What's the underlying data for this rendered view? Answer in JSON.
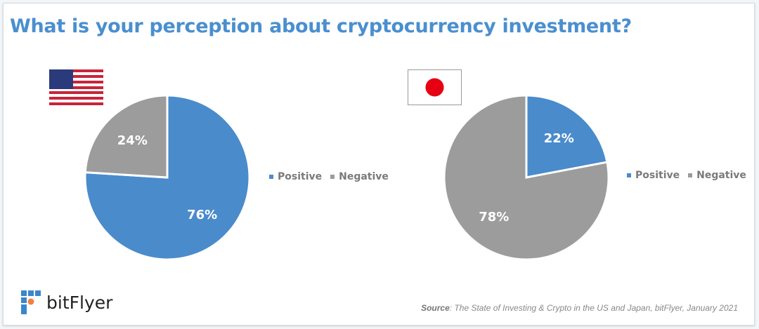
{
  "title": "What is your perception about cryptocurrency investment?",
  "chart_data": [
    {
      "type": "pie",
      "country": "US",
      "categories": [
        "Positive",
        "Negative"
      ],
      "values": [
        76,
        24
      ],
      "labels": [
        "76%",
        "24%"
      ],
      "colors": [
        "#4a8bcb",
        "#9c9c9c"
      ]
    },
    {
      "type": "pie",
      "country": "Japan",
      "categories": [
        "Positive",
        "Negative"
      ],
      "values": [
        22,
        78
      ],
      "labels": [
        "22%",
        "78%"
      ],
      "colors": [
        "#4a8bcb",
        "#9c9c9c"
      ]
    }
  ],
  "legend": {
    "positive": "Positive",
    "negative": "Negative"
  },
  "logo": "bitFlyer",
  "source": {
    "label": "Source",
    "text": ": The State of Investing & Crypto in the US and Japan, bitFlyer, January 2021"
  }
}
